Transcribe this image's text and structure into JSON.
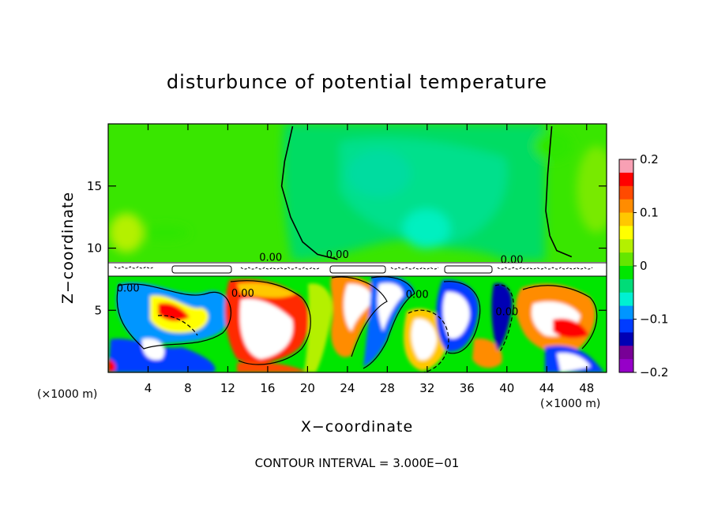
{
  "chart_data": {
    "type": "heatmap",
    "title": "disturbunce of potential temperature",
    "xlabel": "X−coordinate",
    "ylabel": "Z−coordinate",
    "x_unit": "(×1000 m)",
    "x_unit_right": "(×1000 m)",
    "footer": "CONTOUR INTERVAL = 3.000E−01",
    "xlim": [
      0,
      50
    ],
    "ylim": [
      0,
      20
    ],
    "x_ticks": [
      4,
      8,
      12,
      16,
      20,
      24,
      28,
      32,
      36,
      40,
      44,
      48
    ],
    "x_tick_labels": [
      "4",
      "8",
      "12",
      "16",
      "20",
      "24",
      "28",
      "32",
      "36",
      "40",
      "44",
      "48"
    ],
    "y_ticks": [
      5,
      10,
      15
    ],
    "y_tick_labels": [
      "5",
      "10",
      "15"
    ],
    "colorbar": {
      "range": [
        -0.2,
        0.2
      ],
      "ticks": [
        0.2,
        0.1,
        0,
        -0.1,
        -0.2
      ],
      "tick_labels": [
        "0.2",
        "0.1",
        "0",
        "−0.1",
        "−0.2"
      ],
      "colors": [
        "#f8a0b4",
        "#ff0000",
        "#ff4a00",
        "#ff8c00",
        "#ffc800",
        "#ffff00",
        "#b4f000",
        "#64e600",
        "#00e600",
        "#00dc78",
        "#00f0d2",
        "#0096ff",
        "#003cff",
        "#0000b4",
        "#780096",
        "#9600c8"
      ]
    },
    "contour_labels": [
      {
        "x": 16.3,
        "y": 9.0,
        "text": "0.00"
      },
      {
        "x": 23.0,
        "y": 9.2,
        "text": "0.00"
      },
      {
        "x": 13.5,
        "y": 6.1,
        "text": "0.00"
      },
      {
        "x": 2.0,
        "y": 6.5,
        "text": "0.00"
      },
      {
        "x": 31.0,
        "y": 6.0,
        "text": "0.00"
      },
      {
        "x": 40.0,
        "y": 4.6,
        "text": "0.00"
      },
      {
        "x": 40.5,
        "y": 8.8,
        "text": "0.00"
      }
    ],
    "upper_zero_contours": [
      [
        [
          18.5,
          19.8
        ],
        [
          17.7,
          17.0
        ],
        [
          17.4,
          15.0
        ],
        [
          18.3,
          12.5
        ],
        [
          19.5,
          10.5
        ],
        [
          21.0,
          9.5
        ],
        [
          23.0,
          9.1
        ]
      ],
      [
        [
          44.5,
          19.8
        ],
        [
          44.1,
          16.0
        ],
        [
          43.9,
          13.0
        ],
        [
          44.3,
          11.0
        ],
        [
          45.0,
          9.8
        ],
        [
          46.5,
          9.3
        ]
      ]
    ],
    "inversion_layer": {
      "bottom": 7.8,
      "top": 9.0
    }
  }
}
